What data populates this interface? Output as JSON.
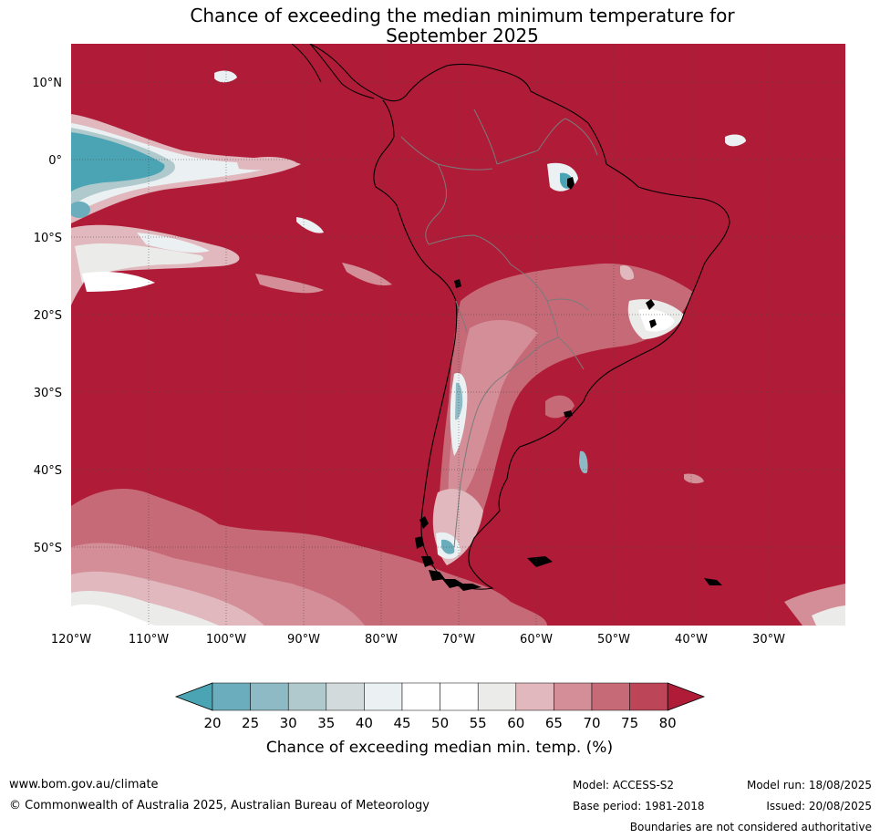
{
  "title": {
    "line1": "Chance of exceeding the median minimum temperature for",
    "line2": "September 2025"
  },
  "map": {
    "lat_labels": [
      "10°N",
      "0°",
      "10°S",
      "20°S",
      "30°S",
      "40°S",
      "50°S"
    ],
    "lon_labels": [
      "120°W",
      "110°W",
      "100°W",
      "90°W",
      "80°W",
      "70°W",
      "60°W",
      "50°W",
      "40°W",
      "30°W"
    ],
    "colors": {
      "land_high": "#b01c38",
      "border": "#000000",
      "country_border": "#7a7a7a",
      "grid": "#444444"
    }
  },
  "colorbar": {
    "ticks": [
      "20",
      "25",
      "30",
      "35",
      "40",
      "45",
      "50",
      "55",
      "60",
      "65",
      "70",
      "75",
      "80"
    ],
    "colors": [
      "#4ba4b4",
      "#6badbc",
      "#8ebac6",
      "#afc9cd",
      "#d2dadc",
      "#ebf0f2",
      "#ffffff",
      "#ffffff",
      "#ebebe9",
      "#e0b8be",
      "#d48e98",
      "#c76a78",
      "#bc4658",
      "#b01c38"
    ],
    "label": "Chance of exceeding median min. temp. (%)"
  },
  "footer": {
    "website": "www.bom.gov.au/climate",
    "copyright": "© Commonwealth of Australia 2025, Australian Bureau of Meteorology",
    "model": "Model: ACCESS-S2",
    "model_run": "Model run: 18/08/2025",
    "base_period": "Base period: 1981-2018",
    "issued": "Issued: 20/08/2025",
    "disclaimer": "Boundaries are not considered authoritative"
  }
}
